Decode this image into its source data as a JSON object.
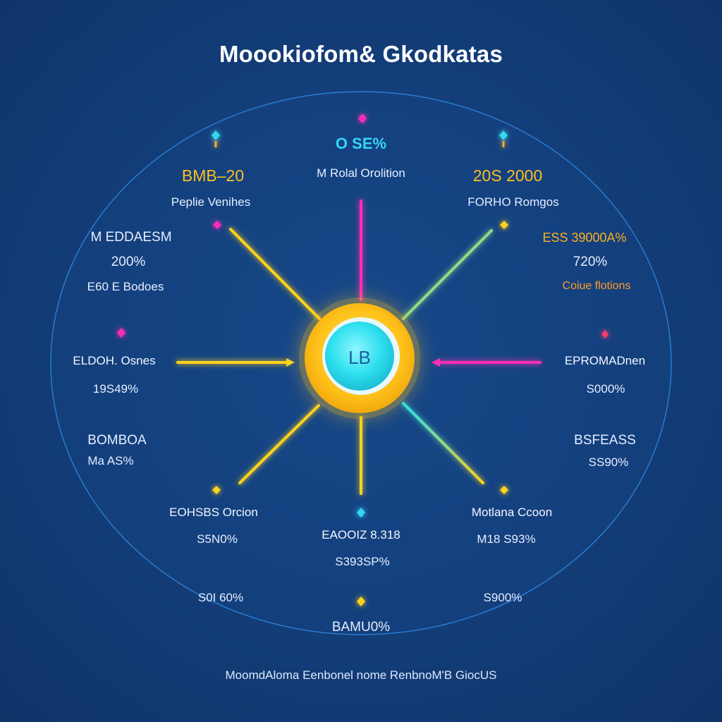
{
  "title": "Moookiofom& Gkodkatas",
  "hub_label": "LB",
  "footer": "MoomdAloma Eenbonel nome RenbnoM'B GiocUS",
  "colors": {
    "background": "#143f7b",
    "hub_outer": "#ffc21a",
    "hub_inner": "#2fe0ef",
    "yellow": "#ffd21e",
    "cyan": "#23e0f0",
    "magenta": "#ff2fb5"
  },
  "labels": {
    "top_value": "O SE%",
    "top_name": "M Rolal Orolition",
    "upper_left_value": "BMB–20",
    "upper_left_name": "Peplie Venihes",
    "upper_right_value": "20S 2000",
    "upper_right_name": "FORHO Romgos",
    "left_top_name": "M EDDAESM",
    "left_top_value": "200%",
    "left_top_sub": "E60 E Bodoes",
    "right_top_name": "ESS 39000A%",
    "right_top_value": "720%",
    "right_top_sub": "Coiue flotions",
    "mid_left_name": "ELDOH. Osnes",
    "mid_left_value": "19S49%",
    "mid_right_name": "EPROMADnen",
    "mid_right_value": "S000%",
    "left_low_name": "BOMBOA",
    "left_low_value": "Ma AS%",
    "right_low_name": "BSFEASS",
    "right_low_value": "SS90%",
    "bottom_left_name": "EOHSBS Orcion",
    "bottom_left_value": "S5N0%",
    "bottom_center_name": "EAOOIZ 8.318",
    "bottom_center_value": "S393SP%",
    "bottom_right_name": "Motlana Ccoon",
    "bottom_right_value": "M18 S93%",
    "far_bottom_left": "S0I 60%",
    "far_bottom_right": "S900%",
    "far_bottom_center": "BAMU0%"
  }
}
